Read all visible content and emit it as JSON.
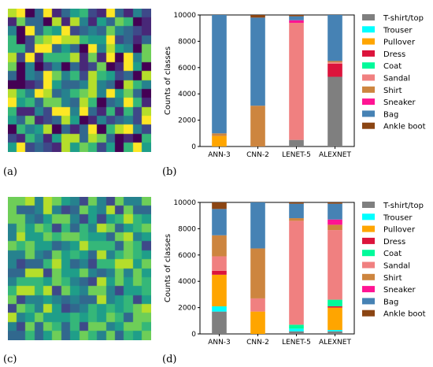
{
  "panel_labels": [
    "(a)",
    "(b)",
    "(c)",
    "(d)"
  ],
  "chart_data": [
    {
      "type": "heatmap",
      "panel": "(a)",
      "rows": 16,
      "cols": 16,
      "colormap": "viridis"
    },
    {
      "type": "bar",
      "stacked": true,
      "panel": "(b)",
      "categories": [
        "ANN-3",
        "CNN-2",
        "LENET-5",
        "ALEXNET"
      ],
      "ylabel": "Counts of classes",
      "ylim": [
        0,
        10000
      ],
      "yticks": [
        "0",
        "2000",
        "4000",
        "6000",
        "8000",
        "10000"
      ],
      "legend": "right",
      "series": [
        {
          "name": "T-shirt/top",
          "color": "#7f7f7f",
          "values": [
            0,
            0,
            500,
            5300
          ]
        },
        {
          "name": "Trouser",
          "color": "#00ffff",
          "values": [
            0,
            0,
            0,
            0
          ]
        },
        {
          "name": "Pullover",
          "color": "#ffa500",
          "values": [
            800,
            0,
            0,
            0
          ]
        },
        {
          "name": "Dress",
          "color": "#dc143c",
          "values": [
            0,
            0,
            0,
            1000
          ]
        },
        {
          "name": "Coat",
          "color": "#00fa9a",
          "values": [
            0,
            0,
            0,
            0
          ]
        },
        {
          "name": "Sandal",
          "color": "#f08080",
          "values": [
            0,
            0,
            8900,
            100
          ]
        },
        {
          "name": "Shirt",
          "color": "#cd853f",
          "values": [
            200,
            3100,
            0,
            100
          ]
        },
        {
          "name": "Sneaker",
          "color": "#ff1493",
          "values": [
            0,
            0,
            200,
            0
          ]
        },
        {
          "name": "Bag",
          "color": "#4682b4",
          "values": [
            9000,
            6700,
            300,
            3500
          ]
        },
        {
          "name": "Ankle boot",
          "color": "#8b4513",
          "values": [
            0,
            200,
            100,
            0
          ]
        }
      ]
    },
    {
      "type": "heatmap",
      "panel": "(c)",
      "rows": 16,
      "cols": 16,
      "colormap": "viridis"
    },
    {
      "type": "bar",
      "stacked": true,
      "panel": "(d)",
      "categories": [
        "ANN-3",
        "CNN-2",
        "LENET-5",
        "ALEXNET"
      ],
      "ylabel": "Counts of classes",
      "ylim": [
        0,
        10000
      ],
      "yticks": [
        "0",
        "2000",
        "4000",
        "6000",
        "8000",
        "10000"
      ],
      "legend": "right",
      "series": [
        {
          "name": "T-shirt/top",
          "color": "#7f7f7f",
          "values": [
            1700,
            0,
            200,
            200
          ]
        },
        {
          "name": "Trouser",
          "color": "#00ffff",
          "values": [
            400,
            0,
            200,
            100
          ]
        },
        {
          "name": "Pullover",
          "color": "#ffa500",
          "values": [
            2400,
            1700,
            0,
            1700
          ]
        },
        {
          "name": "Dress",
          "color": "#dc143c",
          "values": [
            300,
            0,
            0,
            100
          ]
        },
        {
          "name": "Coat",
          "color": "#00fa9a",
          "values": [
            0,
            0,
            300,
            500
          ]
        },
        {
          "name": "Sandal",
          "color": "#f08080",
          "values": [
            1100,
            1000,
            7900,
            5300
          ]
        },
        {
          "name": "Shirt",
          "color": "#cd853f",
          "values": [
            1600,
            3800,
            200,
            400
          ]
        },
        {
          "name": "Sneaker",
          "color": "#ff1493",
          "values": [
            0,
            0,
            0,
            400
          ]
        },
        {
          "name": "Bag",
          "color": "#4682b4",
          "values": [
            2000,
            3500,
            1100,
            1200
          ]
        },
        {
          "name": "Ankle boot",
          "color": "#8b4513",
          "values": [
            500,
            0,
            100,
            100
          ]
        }
      ]
    }
  ]
}
